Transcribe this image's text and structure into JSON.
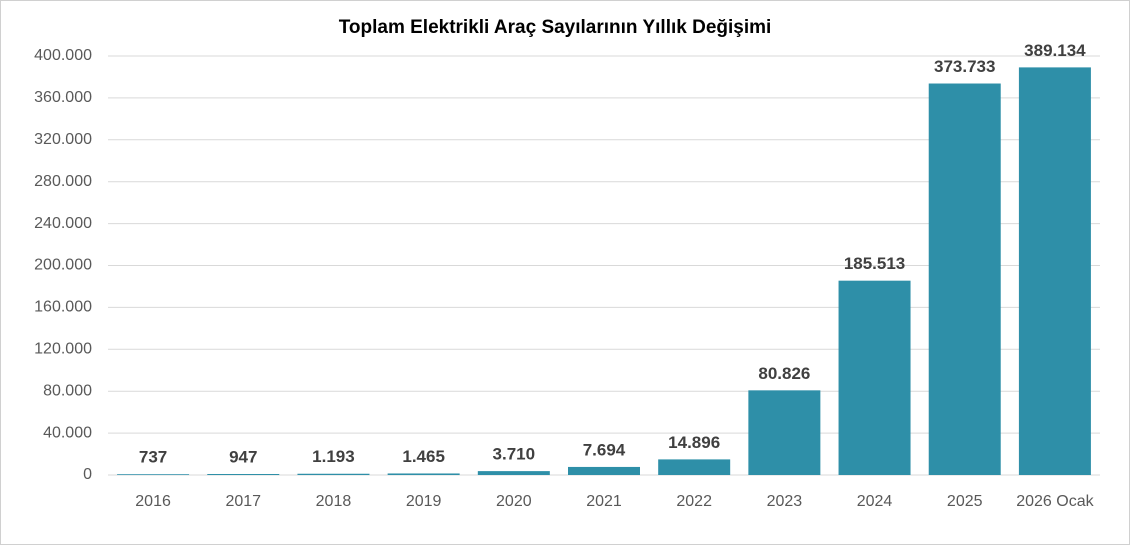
{
  "chart_data": {
    "type": "bar",
    "title": "Toplam Elektrikli Araç Sayılarının Yıllık Değişimi",
    "categories": [
      "2016",
      "2017",
      "2018",
      "2019",
      "2020",
      "2021",
      "2022",
      "2023",
      "2024",
      "2025",
      "2026 Ocak"
    ],
    "values": [
      737,
      947,
      1193,
      1465,
      3710,
      7694,
      14896,
      80826,
      185513,
      373733,
      389134
    ],
    "value_labels": [
      "737",
      "947",
      "1.193",
      "1.465",
      "3.710",
      "7.694",
      "14.896",
      "80.826",
      "185.513",
      "373.733",
      "389.134"
    ],
    "color": "#2e8fa8",
    "ylim": [
      0,
      400000
    ],
    "yticks": [
      0,
      {
        "value": 40000,
        "label": "40.000"
      },
      {
        "value": 80000,
        "label": "80.000"
      },
      {
        "value": 120000,
        "label": "120.000"
      },
      {
        "value": 160000,
        "label": "160.000"
      },
      {
        "value": 200000,
        "label": "200.000"
      },
      {
        "value": 240000,
        "label": "240.000"
      },
      {
        "value": 280000,
        "label": "280.000"
      },
      {
        "value": 320000,
        "label": "320.000"
      },
      {
        "value": 360000,
        "label": "360.000"
      },
      {
        "value": 400000,
        "label": "400.000"
      }
    ],
    "grid": true
  }
}
